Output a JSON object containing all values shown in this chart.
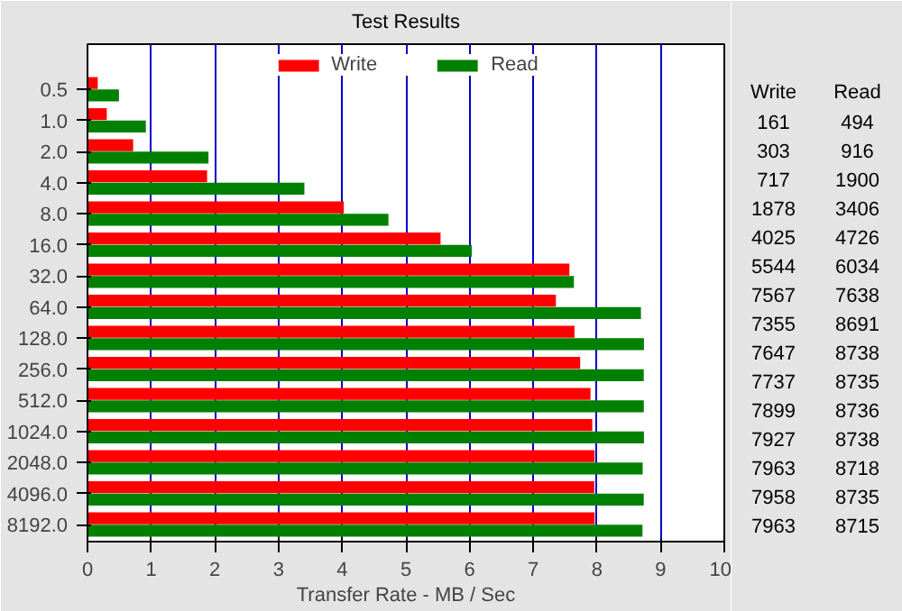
{
  "chart_data": {
    "type": "bar",
    "title": "Test Results",
    "orientation": "horizontal",
    "xlabel": "Transfer Rate - MB / Sec",
    "categories": [
      "0.5",
      "1.0",
      "2.0",
      "4.0",
      "8.0",
      "16.0",
      "32.0",
      "64.0",
      "128.0",
      "256.0",
      "512.0",
      "1024.0",
      "2048.0",
      "4096.0",
      "8192.0"
    ],
    "series": [
      {
        "name": "Write",
        "color": "#ff0000",
        "values": [
          0.161,
          0.303,
          0.717,
          1.878,
          4.025,
          5.544,
          7.567,
          7.355,
          7.647,
          7.737,
          7.899,
          7.927,
          7.963,
          7.958,
          7.963
        ]
      },
      {
        "name": "Read",
        "color": "#008000",
        "values": [
          0.494,
          0.916,
          1.9,
          3.406,
          4.726,
          6.034,
          7.638,
          8.691,
          8.738,
          8.735,
          8.736,
          8.738,
          8.718,
          8.735,
          8.715
        ]
      }
    ],
    "annotations": [
      "Write",
      "Read",
      "161",
      "494",
      "303",
      "916",
      "717",
      "1900",
      "1878",
      "3406",
      "4025",
      "4726",
      "5544",
      "6034",
      "7567",
      "7638",
      "7355",
      "8691",
      "7647",
      "8738",
      "7737",
      "8735",
      "7899",
      "8736",
      "7927",
      "8738",
      "7963",
      "8718",
      "7958",
      "8735",
      "7963",
      "8715"
    ],
    "xlim": [
      0,
      10
    ],
    "xticks": [
      0,
      1,
      2,
      3,
      4,
      5,
      6,
      7,
      8,
      9,
      10
    ],
    "grid": "x",
    "legend": "top"
  }
}
